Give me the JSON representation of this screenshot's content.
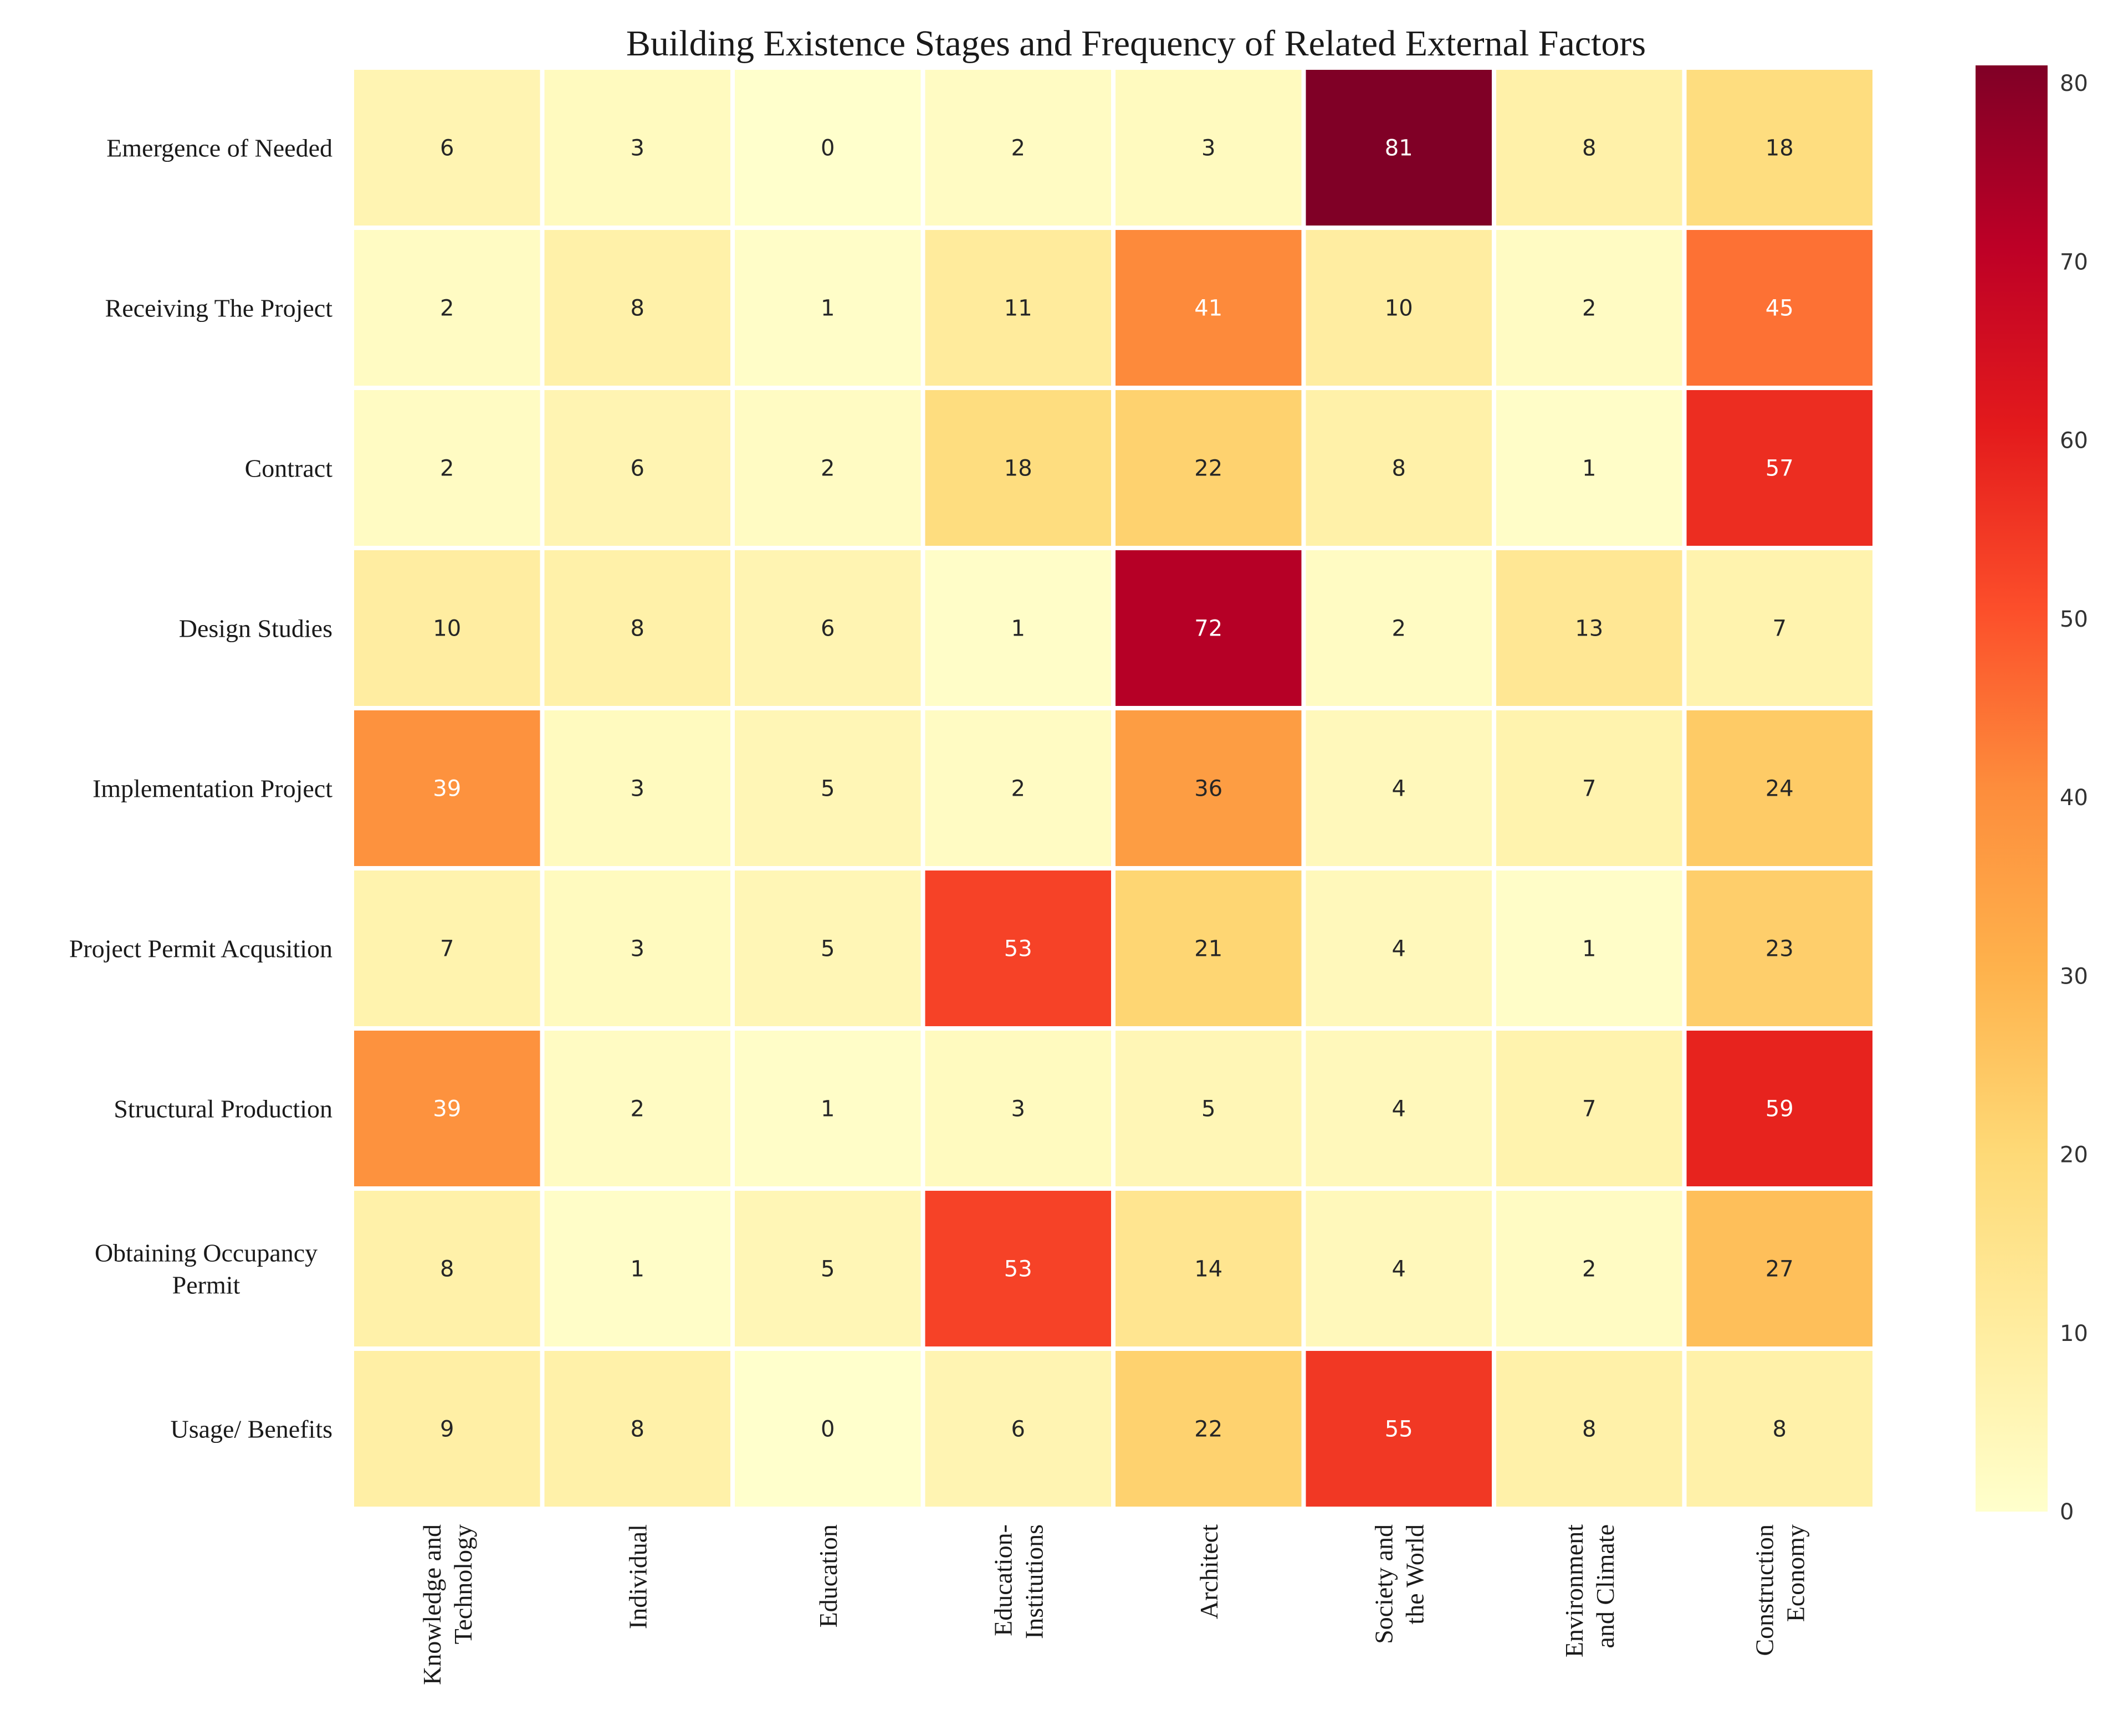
{
  "chart_data": {
    "type": "heatmap",
    "title": "Building Existence Stages and Frequency of Related External Factors",
    "rows": [
      "Emergence of Needed",
      "Receiving The Project",
      "Contract",
      "Design Studies",
      "Implementation Project",
      "Project Permit Acqusition",
      "Structural Production",
      [
        "Obtaining Occupancy",
        "Permit"
      ],
      "Usage/ Benefits"
    ],
    "columns": [
      [
        "Knowledge and",
        "Technology"
      ],
      [
        "Individual"
      ],
      [
        "Education"
      ],
      [
        "Education-",
        "Institutions"
      ],
      [
        "Architect"
      ],
      [
        "Society and",
        "the World"
      ],
      [
        "Environment",
        "and Climate"
      ],
      [
        "Construction",
        "Economy"
      ]
    ],
    "values": [
      [
        6,
        3,
        0,
        2,
        3,
        81,
        8,
        18
      ],
      [
        2,
        8,
        1,
        11,
        41,
        10,
        2,
        45
      ],
      [
        2,
        6,
        2,
        18,
        22,
        8,
        1,
        57
      ],
      [
        10,
        8,
        6,
        1,
        72,
        2,
        13,
        7
      ],
      [
        39,
        3,
        5,
        2,
        36,
        4,
        7,
        24
      ],
      [
        7,
        3,
        5,
        53,
        21,
        4,
        1,
        23
      ],
      [
        39,
        2,
        1,
        3,
        5,
        4,
        7,
        59
      ],
      [
        8,
        1,
        5,
        53,
        14,
        4,
        2,
        27
      ],
      [
        9,
        8,
        0,
        6,
        22,
        55,
        8,
        8
      ]
    ],
    "colormap": "YlOrRd",
    "vmin": 0,
    "vmax": 81,
    "colorbar": {
      "ticks": [
        0,
        10,
        20,
        30,
        40,
        50,
        60,
        70,
        80
      ]
    },
    "annotations": "cell values shown in each cell",
    "grid": false,
    "colors": {
      "low": "#ffffcc",
      "mid": "#fd8d3c",
      "high": "#800026",
      "cell_gap": "#ffffff",
      "text_dark": "#262626",
      "text_light": "#ffffff"
    }
  }
}
